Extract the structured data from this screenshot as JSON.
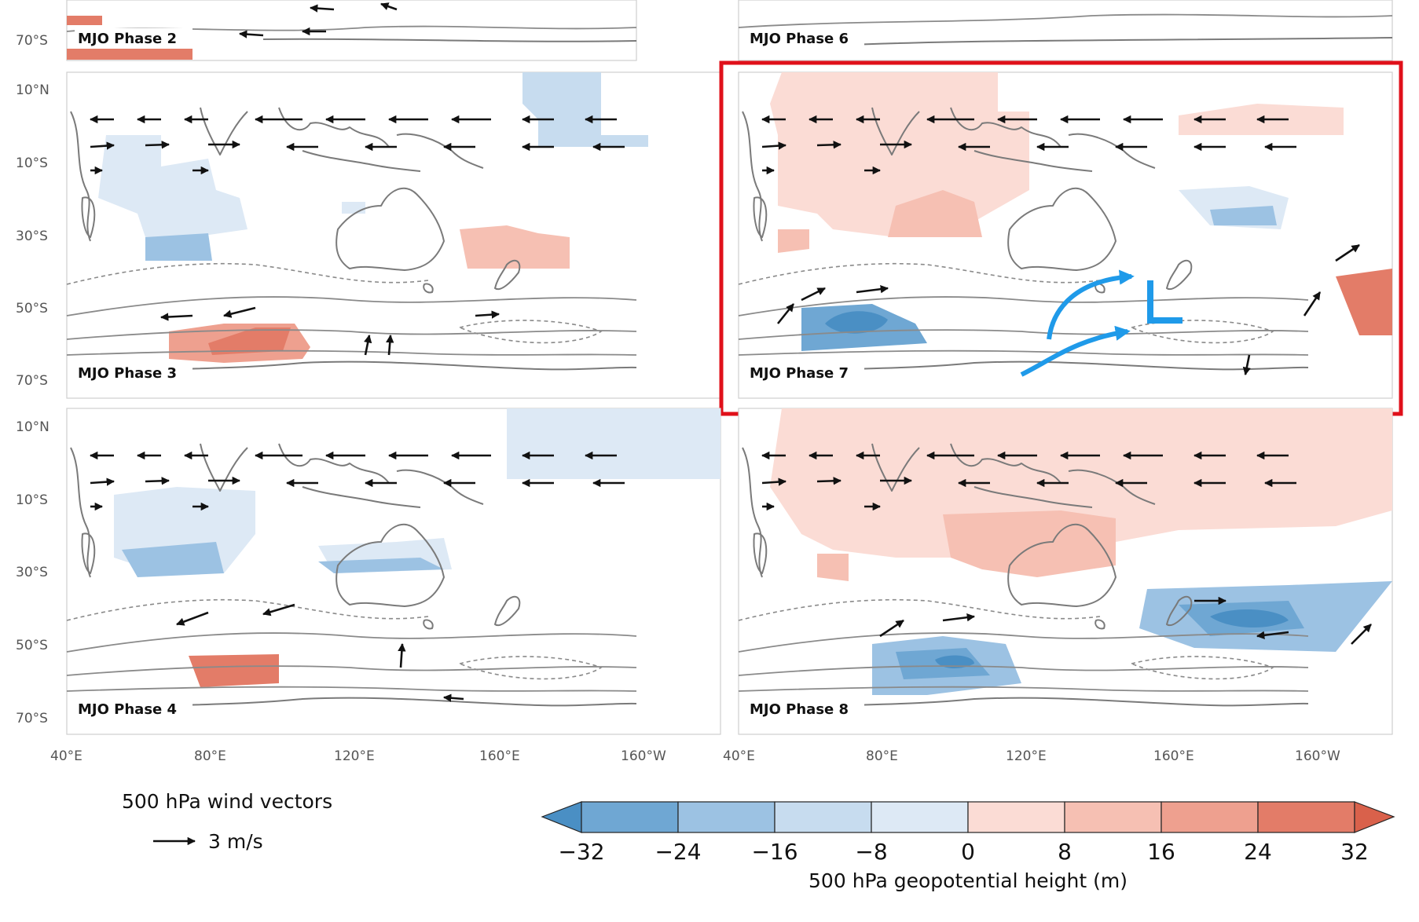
{
  "colors": {
    "neg32": "#4a8fc4",
    "neg24": "#6fa7d3",
    "neg16": "#9cc2e3",
    "neg8": "#c7dcef",
    "neg0": "#dde9f5",
    "pos0": "#fbdcd5",
    "pos8": "#f6c0b3",
    "pos16": "#eea08f",
    "pos24": "#e37c68",
    "pos32": "#d9614b",
    "highlight": "#e0101a",
    "annotation": "#1f9ae9"
  },
  "axes": {
    "lat_labels": [
      "10°N",
      "10°S",
      "30°S",
      "50°S",
      "70°S"
    ],
    "lon_labels": [
      "40°E",
      "80°E",
      "120°E",
      "160°E",
      "160°W"
    ]
  },
  "panels": [
    {
      "id": "p2",
      "label": "MJO Phase 2"
    },
    {
      "id": "p6",
      "label": "MJO Phase 6"
    },
    {
      "id": "p3",
      "label": "MJO Phase 3"
    },
    {
      "id": "p7",
      "label": "MJO Phase 7"
    },
    {
      "id": "p4",
      "label": "MJO Phase 4"
    },
    {
      "id": "p8",
      "label": "MJO Phase 8"
    }
  ],
  "annotation": {
    "low_letter": "L"
  },
  "colorbar": {
    "ticks": [
      "−32",
      "−24",
      "−16",
      "−8",
      "0",
      "8",
      "16",
      "24",
      "32"
    ],
    "title": "500 hPa geopotential height (m)"
  },
  "legend": {
    "title": "500 hPa wind vectors",
    "reference": "3 m/s"
  }
}
